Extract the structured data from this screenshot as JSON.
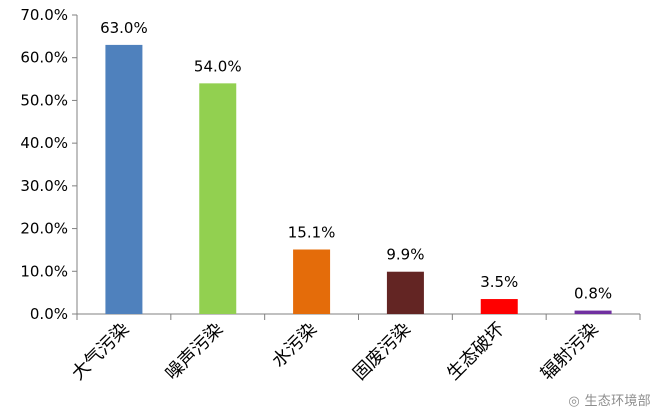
{
  "chart_data": {
    "type": "bar",
    "title": "",
    "xlabel": "",
    "ylabel": "",
    "categories": [
      "大气污染",
      "噪声污染",
      "水污染",
      "固废污染",
      "生态破坏",
      "辐射污染"
    ],
    "values": [
      63.0,
      54.0,
      15.1,
      9.9,
      3.5,
      0.8
    ],
    "data_labels": [
      "63.0%",
      "54.0%",
      "15.1%",
      "9.9%",
      "3.5%",
      "0.8%"
    ],
    "bar_colors": [
      "#4F81BD",
      "#92D050",
      "#E46C0A",
      "#632523",
      "#FF0000",
      "#7030A0"
    ],
    "ylim": [
      0,
      70
    ],
    "yticks": [
      0,
      10,
      20,
      30,
      40,
      50,
      60,
      70
    ],
    "ytick_labels": [
      "0.0%",
      "10.0%",
      "20.0%",
      "30.0%",
      "40.0%",
      "50.0%",
      "60.0%",
      "70.0%"
    ],
    "grid": false,
    "legend": "none"
  },
  "watermark": {
    "text": "生态环境部",
    "icon": "weibo-icon"
  }
}
